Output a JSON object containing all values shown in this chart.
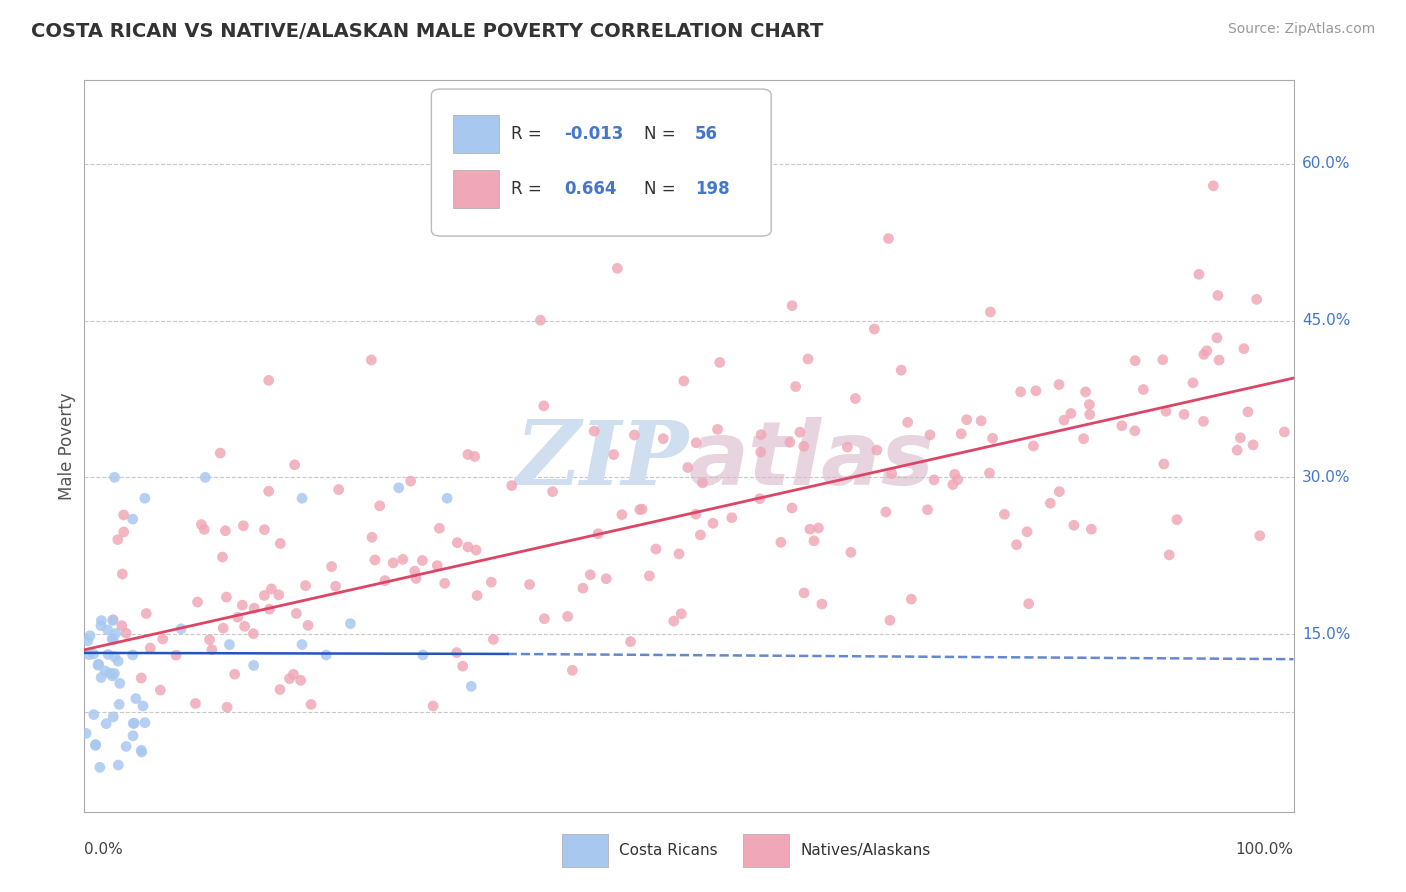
{
  "title": "COSTA RICAN VS NATIVE/ALASKAN MALE POVERTY CORRELATION CHART",
  "source": "Source: ZipAtlas.com",
  "ylabel": "Male Poverty",
  "ytick_labels": [
    "15.0%",
    "30.0%",
    "45.0%",
    "60.0%"
  ],
  "ytick_values": [
    0.15,
    0.3,
    0.45,
    0.6
  ],
  "legend_label1": "Costa Ricans",
  "legend_label2": "Natives/Alaskans",
  "r1": "-0.013",
  "n1": "56",
  "r2": "0.664",
  "n2": "198",
  "color1": "#a8c8f0",
  "color2": "#f0a8b8",
  "line_color1": "#2255bb",
  "line_color2": "#dd4466",
  "background_color": "#ffffff",
  "grid_color": "#c8c8c8",
  "title_color": "#333333",
  "watermark_color": "#d0dff0",
  "label_color": "#4477cc",
  "xmin": 0.0,
  "xmax": 1.0,
  "ymin": -0.02,
  "ymax": 0.68
}
